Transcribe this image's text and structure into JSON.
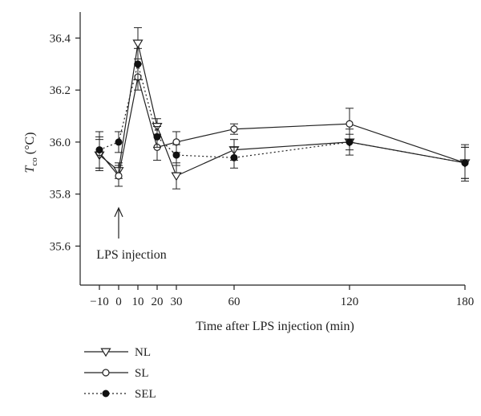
{
  "chart_data": {
    "type": "line",
    "ylabel_main": "T",
    "ylabel_sub": "co",
    "ylabel_unit": " (°C)",
    "xlabel": "Time after LPS injection (min)",
    "x_ticks": [
      -10,
      0,
      10,
      20,
      30,
      60,
      120,
      180
    ],
    "x_tick_labels": [
      "−10",
      "0",
      "10",
      "20",
      "30",
      "60",
      "120",
      "180"
    ],
    "xlim": [
      -20,
      180
    ],
    "y_ticks": [
      35.6,
      35.8,
      36.0,
      36.2,
      36.4
    ],
    "y_tick_labels": [
      "35.6",
      "35.8",
      "36.0",
      "36.2",
      "36.4"
    ],
    "ylim": [
      35.45,
      36.5
    ],
    "annotation": {
      "text": "LPS injection",
      "x": 0
    },
    "legend_position": "bottom-left",
    "series": [
      {
        "name": "NL",
        "marker": "triangle-down",
        "line": "solid",
        "x": [
          -10,
          0,
          10,
          20,
          30,
          60,
          120,
          180
        ],
        "y": [
          35.95,
          35.89,
          36.38,
          36.06,
          35.87,
          35.97,
          36.0,
          35.92
        ],
        "err": [
          0.06,
          0.03,
          0.06,
          0.03,
          0.05,
          0.04,
          0.03,
          0.07
        ]
      },
      {
        "name": "SL",
        "marker": "circle-open",
        "line": "solid",
        "x": [
          -10,
          0,
          10,
          20,
          30,
          60,
          120,
          180
        ],
        "y": [
          35.96,
          35.87,
          36.25,
          35.98,
          36.0,
          36.05,
          36.07,
          35.92
        ],
        "err": [
          0.06,
          0.04,
          0.05,
          0.05,
          0.04,
          0.02,
          0.06,
          0.06
        ]
      },
      {
        "name": "SEL",
        "marker": "circle-filled",
        "line": "dotted",
        "x": [
          -10,
          0,
          10,
          20,
          30,
          60,
          120,
          180
        ],
        "y": [
          35.97,
          36.0,
          36.3,
          36.02,
          35.95,
          35.94,
          36.0,
          35.92
        ],
        "err": [
          0.07,
          0.04,
          0.06,
          0.04,
          0.04,
          0.04,
          0.05,
          0.06
        ]
      }
    ]
  }
}
